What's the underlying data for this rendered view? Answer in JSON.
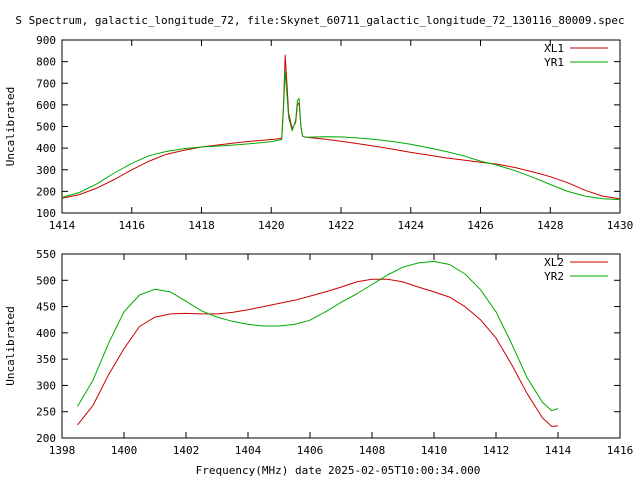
{
  "title": "S Spectrum, galactic_longitude_72, file:Skynet_60711_galactic_longitude_72_130116_80009.spec",
  "xlabel": "Frequency(MHz) date 2025-02-05T10:00:34.000",
  "colors": {
    "red": "#cc0000",
    "green": "#00aa00",
    "axis": "#000000"
  },
  "chart_data": [
    {
      "type": "line",
      "ylabel": "Uncalibrated",
      "xlim": [
        1414,
        1430
      ],
      "ylim": [
        100,
        900
      ],
      "xticks": [
        1414,
        1416,
        1418,
        1420,
        1422,
        1424,
        1426,
        1428,
        1430
      ],
      "yticks": [
        100,
        200,
        300,
        400,
        500,
        600,
        700,
        800,
        900
      ],
      "legend_position": "top-right",
      "series": [
        {
          "name": "XL1",
          "color": "#cc0000",
          "points": [
            [
              1414.0,
              168
            ],
            [
              1414.5,
              185
            ],
            [
              1415.0,
              215
            ],
            [
              1415.5,
              255
            ],
            [
              1416.0,
              300
            ],
            [
              1416.5,
              340
            ],
            [
              1417.0,
              372
            ],
            [
              1417.5,
              390
            ],
            [
              1418.0,
              405
            ],
            [
              1418.5,
              415
            ],
            [
              1419.0,
              425
            ],
            [
              1419.5,
              433
            ],
            [
              1420.0,
              440
            ],
            [
              1420.3,
              445
            ],
            [
              1420.35,
              600
            ],
            [
              1420.4,
              830
            ],
            [
              1420.45,
              700
            ],
            [
              1420.5,
              560
            ],
            [
              1420.6,
              490
            ],
            [
              1420.7,
              520
            ],
            [
              1420.75,
              600
            ],
            [
              1420.8,
              610
            ],
            [
              1420.85,
              500
            ],
            [
              1420.9,
              455
            ],
            [
              1421.0,
              450
            ],
            [
              1421.5,
              442
            ],
            [
              1422.0,
              432
            ],
            [
              1422.5,
              420
            ],
            [
              1423.0,
              408
            ],
            [
              1423.5,
              395
            ],
            [
              1424.0,
              380
            ],
            [
              1424.5,
              368
            ],
            [
              1425.0,
              355
            ],
            [
              1425.5,
              345
            ],
            [
              1426.0,
              335
            ],
            [
              1426.5,
              325
            ],
            [
              1427.0,
              310
            ],
            [
              1427.5,
              290
            ],
            [
              1428.0,
              268
            ],
            [
              1428.5,
              240
            ],
            [
              1429.0,
              205
            ],
            [
              1429.5,
              178
            ],
            [
              1430.0,
              165
            ]
          ]
        },
        {
          "name": "YR1",
          "color": "#00aa00",
          "points": [
            [
              1414.0,
              172
            ],
            [
              1414.5,
              195
            ],
            [
              1415.0,
              235
            ],
            [
              1415.5,
              285
            ],
            [
              1416.0,
              330
            ],
            [
              1416.5,
              365
            ],
            [
              1417.0,
              385
            ],
            [
              1417.5,
              398
            ],
            [
              1418.0,
              405
            ],
            [
              1418.5,
              410
            ],
            [
              1419.0,
              415
            ],
            [
              1419.5,
              422
            ],
            [
              1420.0,
              430
            ],
            [
              1420.3,
              440
            ],
            [
              1420.35,
              580
            ],
            [
              1420.4,
              760
            ],
            [
              1420.45,
              650
            ],
            [
              1420.5,
              540
            ],
            [
              1420.6,
              480
            ],
            [
              1420.7,
              530
            ],
            [
              1420.75,
              620
            ],
            [
              1420.8,
              630
            ],
            [
              1420.85,
              500
            ],
            [
              1420.9,
              455
            ],
            [
              1421.0,
              450
            ],
            [
              1421.5,
              453
            ],
            [
              1422.0,
              452
            ],
            [
              1422.5,
              447
            ],
            [
              1423.0,
              440
            ],
            [
              1423.5,
              430
            ],
            [
              1424.0,
              418
            ],
            [
              1424.5,
              402
            ],
            [
              1425.0,
              385
            ],
            [
              1425.5,
              365
            ],
            [
              1426.0,
              340
            ],
            [
              1426.5,
              320
            ],
            [
              1427.0,
              295
            ],
            [
              1427.5,
              265
            ],
            [
              1428.0,
              232
            ],
            [
              1428.5,
              200
            ],
            [
              1429.0,
              178
            ],
            [
              1429.5,
              166
            ],
            [
              1430.0,
              162
            ]
          ]
        }
      ]
    },
    {
      "type": "line",
      "ylabel": "Uncalibrated",
      "xlim": [
        1398,
        1416
      ],
      "ylim": [
        200,
        550
      ],
      "xticks": [
        1398,
        1400,
        1402,
        1404,
        1406,
        1408,
        1410,
        1412,
        1414,
        1416
      ],
      "yticks": [
        200,
        250,
        300,
        350,
        400,
        450,
        500,
        550
      ],
      "legend_position": "top-right",
      "series": [
        {
          "name": "XL2",
          "color": "#cc0000",
          "points": [
            [
              1398.5,
              225
            ],
            [
              1399.0,
              262
            ],
            [
              1399.5,
              320
            ],
            [
              1400.0,
              370
            ],
            [
              1400.5,
              412
            ],
            [
              1401.0,
              430
            ],
            [
              1401.5,
              436
            ],
            [
              1402.0,
              437
            ],
            [
              1402.5,
              436
            ],
            [
              1403.0,
              436
            ],
            [
              1403.5,
              439
            ],
            [
              1404.0,
              444
            ],
            [
              1404.5,
              450
            ],
            [
              1405.0,
              456
            ],
            [
              1405.5,
              462
            ],
            [
              1406.0,
              470
            ],
            [
              1406.5,
              478
            ],
            [
              1407.0,
              487
            ],
            [
              1407.5,
              497
            ],
            [
              1408.0,
              502
            ],
            [
              1408.5,
              502
            ],
            [
              1409.0,
              497
            ],
            [
              1409.5,
              487
            ],
            [
              1410.0,
              478
            ],
            [
              1410.5,
              468
            ],
            [
              1411.0,
              450
            ],
            [
              1411.5,
              425
            ],
            [
              1412.0,
              390
            ],
            [
              1412.5,
              340
            ],
            [
              1413.0,
              285
            ],
            [
              1413.5,
              238
            ],
            [
              1413.8,
              222
            ],
            [
              1414.0,
              223
            ]
          ]
        },
        {
          "name": "YR2",
          "color": "#00aa00",
          "points": [
            [
              1398.5,
              260
            ],
            [
              1399.0,
              310
            ],
            [
              1399.5,
              380
            ],
            [
              1400.0,
              440
            ],
            [
              1400.5,
              472
            ],
            [
              1401.0,
              483
            ],
            [
              1401.5,
              478
            ],
            [
              1402.0,
              460
            ],
            [
              1402.5,
              442
            ],
            [
              1403.0,
              430
            ],
            [
              1403.5,
              422
            ],
            [
              1404.0,
              416
            ],
            [
              1404.5,
              413
            ],
            [
              1405.0,
              413
            ],
            [
              1405.5,
              416
            ],
            [
              1406.0,
              424
            ],
            [
              1406.5,
              440
            ],
            [
              1407.0,
              458
            ],
            [
              1407.5,
              474
            ],
            [
              1408.0,
              492
            ],
            [
              1408.5,
              510
            ],
            [
              1409.0,
              525
            ],
            [
              1409.5,
              533
            ],
            [
              1410.0,
              536
            ],
            [
              1410.5,
              530
            ],
            [
              1411.0,
              512
            ],
            [
              1411.5,
              482
            ],
            [
              1412.0,
              440
            ],
            [
              1412.5,
              380
            ],
            [
              1413.0,
              315
            ],
            [
              1413.5,
              268
            ],
            [
              1413.8,
              252
            ],
            [
              1414.0,
              256
            ]
          ]
        }
      ]
    }
  ]
}
